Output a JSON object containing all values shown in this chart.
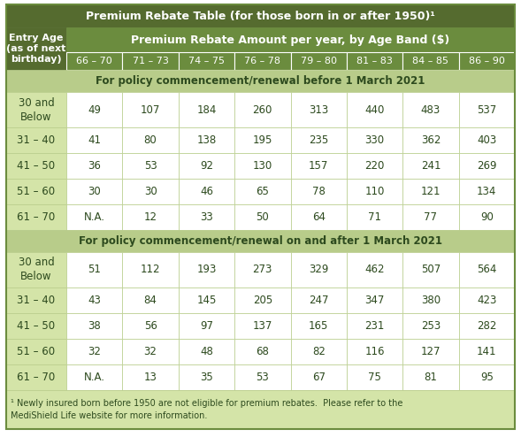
{
  "title": "Premium Rebate Table (for those born in or after 1950)¹",
  "header_label": "Entry Age\n(as of next\nbirthday)",
  "col_header": "Premium Rebate Amount per year, by Age Band ($)",
  "age_bands": [
    "66 – 70",
    "71 – 73",
    "74 – 75",
    "76 – 78",
    "79 – 80",
    "81 – 83",
    "84 – 85",
    "86 – 90"
  ],
  "section1_title": "For policy commencement/renewal before 1 March 2021",
  "section1_rows": [
    [
      "30 and\nBelow",
      "49",
      "107",
      "184",
      "260",
      "313",
      "440",
      "483",
      "537"
    ],
    [
      "31 – 40",
      "41",
      "80",
      "138",
      "195",
      "235",
      "330",
      "362",
      "403"
    ],
    [
      "41 – 50",
      "36",
      "53",
      "92",
      "130",
      "157",
      "220",
      "241",
      "269"
    ],
    [
      "51 – 60",
      "30",
      "30",
      "46",
      "65",
      "78",
      "110",
      "121",
      "134"
    ],
    [
      "61 – 70",
      "N.A.",
      "12",
      "33",
      "50",
      "64",
      "71",
      "77",
      "90"
    ]
  ],
  "section2_title": "For policy commencement/renewal on and after 1 March 2021",
  "section2_rows": [
    [
      "30 and\nBelow",
      "51",
      "112",
      "193",
      "273",
      "329",
      "462",
      "507",
      "564"
    ],
    [
      "31 – 40",
      "43",
      "84",
      "145",
      "205",
      "247",
      "347",
      "380",
      "423"
    ],
    [
      "41 – 50",
      "38",
      "56",
      "97",
      "137",
      "165",
      "231",
      "253",
      "282"
    ],
    [
      "51 – 60",
      "32",
      "32",
      "48",
      "68",
      "82",
      "116",
      "127",
      "141"
    ],
    [
      "61 – 70",
      "N.A.",
      "13",
      "35",
      "53",
      "67",
      "75",
      "81",
      "95"
    ]
  ],
  "footnote": "¹ Newly insured born before 1950 are not eligible for premium rebates.  Please refer to the\nMediShield Life website for more information.",
  "color_dark_green": "#556b2f",
  "color_medium_green": "#6b8c3e",
  "color_light_green": "#b8cc8a",
  "color_very_light_green": "#d4e4a8",
  "color_white": "#ffffff",
  "color_text_dark": "#2d4a1e",
  "fig_w": 5.89,
  "fig_h": 4.94,
  "dpi": 100
}
